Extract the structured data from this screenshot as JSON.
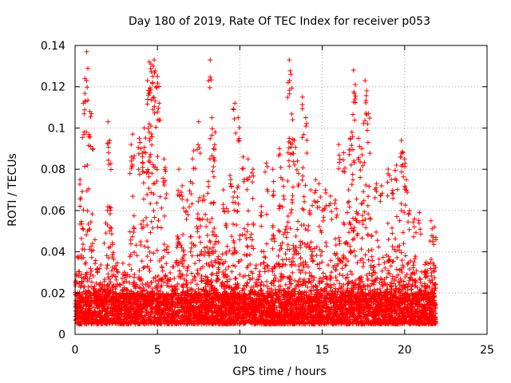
{
  "chart_data": {
    "type": "scatter",
    "title": "Day 180 of 2019, Rate Of TEC Index for receiver p053",
    "xlabel": "GPS time / hours",
    "ylabel": "ROTI / TECUs",
    "xlim": [
      0,
      25
    ],
    "ylim": [
      0,
      0.14
    ],
    "xticks": [
      0,
      5,
      10,
      15,
      20,
      25
    ],
    "xtick_labels": [
      "0",
      "5",
      "10",
      "15",
      "20",
      "25"
    ],
    "yticks": [
      0,
      0.02,
      0.04,
      0.06,
      0.08,
      0.1,
      0.12,
      0.14
    ],
    "ytick_labels": [
      "0",
      "0.02",
      "0.04",
      "0.06",
      "0.08",
      "0.1",
      "0.12",
      "0.14"
    ],
    "grid": true,
    "marker": "+",
    "color": "#ff0000",
    "time_range_hours": [
      0,
      21.9
    ],
    "baseline_roti": [
      0.005,
      0.02
    ],
    "series": [
      {
        "name": "ROTI",
        "x": [
          0.7,
          0.6,
          0.9,
          1.0,
          0.3,
          0.5,
          2.0,
          2.1,
          3.5,
          3.4,
          4.2,
          4.4,
          4.5,
          4.6,
          4.7,
          4.8,
          4.9,
          5.0,
          5.1,
          4.5,
          4.6,
          3.9,
          4.1,
          4.0,
          5.4,
          5.5,
          6.3,
          6.5,
          6.8,
          7.0,
          7.2,
          7.5,
          7.8,
          8.2,
          8.3,
          8.5,
          8.4,
          9.0,
          9.2,
          9.4,
          9.7,
          9.9,
          10.2,
          10.5,
          10.8,
          11.3,
          11.6,
          12.0,
          12.4,
          12.6,
          13.0,
          13.1,
          13.2,
          13.3,
          13.0,
          13.5,
          13.8,
          14.0,
          14.3,
          14.6,
          14.8,
          15.0,
          15.2,
          15.5,
          15.8,
          16.0,
          16.3,
          16.6,
          16.7,
          16.8,
          16.9,
          17.0,
          17.2,
          17.4,
          17.6,
          17.7,
          17.8,
          18.3,
          18.6,
          19.0,
          19.2,
          19.5,
          19.8,
          19.9,
          20.0,
          20.1,
          20.3,
          20.6,
          20.9,
          21.3,
          21.6,
          21.8
        ],
        "y": [
          0.137,
          0.124,
          0.108,
          0.107,
          0.075,
          0.112,
          0.103,
          0.094,
          0.097,
          0.092,
          0.1,
          0.123,
          0.132,
          0.131,
          0.122,
          0.133,
          0.12,
          0.125,
          0.112,
          0.102,
          0.101,
          0.095,
          0.086,
          0.09,
          0.085,
          0.079,
          0.08,
          0.072,
          0.065,
          0.074,
          0.089,
          0.103,
          0.067,
          0.133,
          0.105,
          0.098,
          0.09,
          0.07,
          0.061,
          0.077,
          0.112,
          0.105,
          0.086,
          0.085,
          0.08,
          0.062,
          0.083,
          0.08,
          0.09,
          0.075,
          0.133,
          0.126,
          0.104,
          0.094,
          0.095,
          0.084,
          0.115,
          0.105,
          0.07,
          0.075,
          0.073,
          0.06,
          0.07,
          0.067,
          0.065,
          0.092,
          0.088,
          0.07,
          0.095,
          0.098,
          0.128,
          0.121,
          0.095,
          0.09,
          0.123,
          0.118,
          0.107,
          0.073,
          0.072,
          0.08,
          0.075,
          0.082,
          0.094,
          0.088,
          0.085,
          0.075,
          0.06,
          0.056,
          0.059,
          0.035,
          0.055,
          0.052
        ]
      }
    ]
  }
}
